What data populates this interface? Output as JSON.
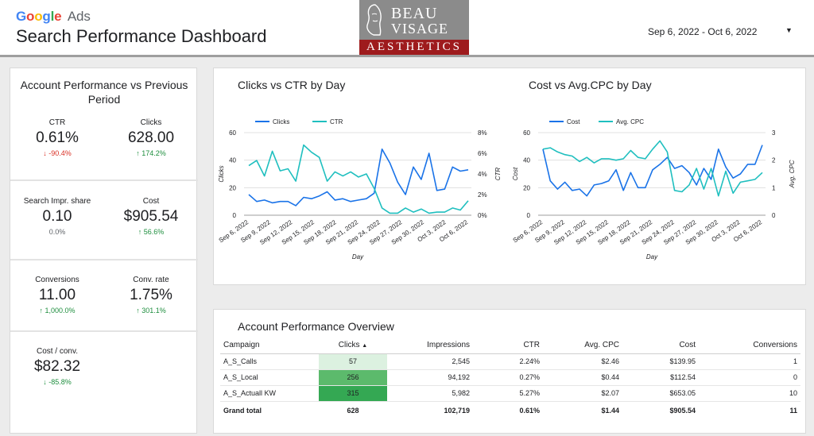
{
  "header": {
    "brand_google": "Google",
    "brand_ads": "Ads",
    "title": "Search Performance Dashboard",
    "logo": {
      "line1": "BEAU",
      "line2": "VISAGE",
      "line3": "AESTHETICS"
    },
    "date_range": "Sep 6, 2022 - Oct 6, 2022",
    "dropdown_icon": "caret-down-icon"
  },
  "scorecards": {
    "title": "Account Performance vs Previous Period",
    "items": [
      {
        "label": "CTR",
        "value": "0.61%",
        "change": "-90.4%",
        "trend": "down",
        "color": "#d93025"
      },
      {
        "label": "Clicks",
        "value": "628.00",
        "change": "174.2%",
        "trend": "up",
        "color": "#1e8e3e"
      },
      {
        "label": "Search Impr. share",
        "value": "0.10",
        "change": "0.0%",
        "trend": "neutral",
        "color": "#5f6368"
      },
      {
        "label": "Cost",
        "value": "$905.54",
        "change": "56.6%",
        "trend": "up",
        "color": "#1e8e3e"
      },
      {
        "label": "Conversions",
        "value": "11.00",
        "change": "1,000.0%",
        "trend": "up",
        "color": "#1e8e3e"
      },
      {
        "label": "Conv. rate",
        "value": "1.75%",
        "change": "301.1%",
        "trend": "up",
        "color": "#1e8e3e"
      },
      {
        "label": "Cost / conv.",
        "value": "$82.32",
        "change": "-85.8%",
        "trend": "down",
        "color": "#1e8e3e"
      }
    ]
  },
  "chart_data": [
    {
      "type": "line",
      "title": "Clicks vs CTR by Day",
      "xlabel": "Day",
      "ylabel_left": "Clicks",
      "ylabel_right": "CTR",
      "x_ticks": [
        "Sep 6, 2022",
        "Sep 9, 2022",
        "Sep 12, 2022",
        "Sep 15, 2022",
        "Sep 18, 2022",
        "Sep 21, 2022",
        "Sep 24, 2022",
        "Sep 27, 2022",
        "Sep 30, 2022",
        "Oct 3, 2022",
        "Oct 6, 2022"
      ],
      "ylim_left": [
        0,
        60
      ],
      "yticks_left": [
        "0",
        "20",
        "40",
        "60"
      ],
      "ylim_right": [
        0,
        8
      ],
      "yticks_right": [
        "0%",
        "2%",
        "4%",
        "6%",
        "8%"
      ],
      "legend": "top-left",
      "series": [
        {
          "name": "Clicks",
          "axis": "left",
          "color": "#1a73e8",
          "values": [
            15,
            10,
            11,
            9,
            10,
            10,
            7,
            13,
            12,
            14,
            17,
            11,
            12,
            10,
            11,
            12,
            16,
            48,
            38,
            24,
            15,
            35,
            26,
            45,
            18,
            19,
            35,
            32,
            33
          ]
        },
        {
          "name": "CTR",
          "axis": "right",
          "color": "#1fbfbf",
          "values": [
            4.8,
            5.3,
            3.8,
            6.2,
            4.3,
            4.5,
            3.3,
            6.8,
            6.1,
            5.6,
            3.3,
            4.2,
            3.8,
            4.2,
            3.7,
            4.0,
            2.6,
            0.7,
            0.2,
            0.2,
            0.7,
            0.3,
            0.6,
            0.2,
            0.3,
            0.3,
            0.7,
            0.5,
            1.4
          ]
        }
      ]
    },
    {
      "type": "line",
      "title": "Cost vs Avg.CPC by Day",
      "xlabel": "Day",
      "ylabel_left": "Cost",
      "ylabel_right": "Avg. CPC",
      "x_ticks": [
        "Sep 6, 2022",
        "Sep 9, 2022",
        "Sep 12, 2022",
        "Sep 15, 2022",
        "Sep 18, 2022",
        "Sep 21, 2022",
        "Sep 24, 2022",
        "Sep 27, 2022",
        "Sep 30, 2022",
        "Oct 3, 2022",
        "Oct 6, 2022"
      ],
      "ylim_left": [
        0,
        60
      ],
      "yticks_left": [
        "0",
        "20",
        "40",
        "60"
      ],
      "ylim_right": [
        0,
        3
      ],
      "yticks_right": [
        "0",
        "1",
        "2",
        "3"
      ],
      "legend": "top-left",
      "series": [
        {
          "name": "Cost",
          "axis": "left",
          "color": "#1a73e8",
          "values": [
            48,
            25,
            19,
            24,
            18,
            19,
            14,
            22,
            23,
            25,
            33,
            18,
            31,
            20,
            20,
            33,
            37,
            42,
            34,
            36,
            31,
            22,
            34,
            26,
            48,
            35,
            27,
            30,
            37,
            37,
            51
          ]
        },
        {
          "name": "Avg. CPC",
          "axis": "right",
          "color": "#1fbfbf",
          "values": [
            2.4,
            2.45,
            2.3,
            2.2,
            2.15,
            1.95,
            2.1,
            1.9,
            2.05,
            2.05,
            2.0,
            2.05,
            2.35,
            2.1,
            2.05,
            2.4,
            2.7,
            2.3,
            0.9,
            0.85,
            1.1,
            1.7,
            0.95,
            1.7,
            0.7,
            1.6,
            0.8,
            1.2,
            1.25,
            1.3,
            1.55
          ]
        }
      ]
    }
  ],
  "table": {
    "title": "Account Performance Overview",
    "sort_icon": "sort-asc-icon",
    "headers": [
      "Campaign",
      "Clicks",
      "Impressions",
      "CTR",
      "Avg. CPC",
      "Cost",
      "Conversions"
    ],
    "rows": [
      {
        "campaign": "A_S_Calls",
        "clicks": "57",
        "clicks_shade": "#dcf1e0",
        "impressions": "2,545",
        "ctr": "2.24%",
        "cpc": "$2.46",
        "cost": "$139.95",
        "conversions": "1"
      },
      {
        "campaign": "A_S_Local",
        "clicks": "256",
        "clicks_shade": "#5cba6c",
        "impressions": "94,192",
        "ctr": "0.27%",
        "cpc": "$0.44",
        "cost": "$112.54",
        "conversions": "0"
      },
      {
        "campaign": "A_S_Actuall KW",
        "clicks": "315",
        "clicks_shade": "#34a853",
        "impressions": "5,982",
        "ctr": "5.27%",
        "cpc": "$2.07",
        "cost": "$653.05",
        "conversions": "10"
      }
    ],
    "total": {
      "label": "Grand total",
      "clicks": "628",
      "impressions": "102,719",
      "ctr": "0.61%",
      "cpc": "$1.44",
      "cost": "$905.54",
      "conversions": "11"
    }
  }
}
